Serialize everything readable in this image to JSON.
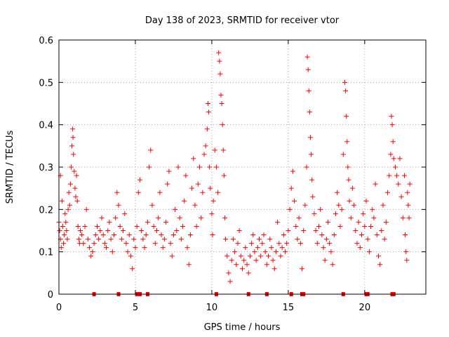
{
  "chart_data": {
    "type": "scatter",
    "title": "Day 138 of 2023, SRMTID for receiver vtor",
    "xlabel": "GPS time / hours",
    "ylabel": "SRMTID / TECUs",
    "xlim": [
      0,
      24
    ],
    "ylim": [
      0,
      0.6
    ],
    "xticks": [
      0,
      5,
      10,
      15,
      20
    ],
    "xtick_labels": [
      "0",
      "5",
      "10",
      "15",
      "20"
    ],
    "yticks": [
      0,
      0.1,
      0.2,
      0.3,
      0.4,
      0.5,
      0.6
    ],
    "ytick_labels": [
      "0",
      "0.1",
      "0.2",
      "0.3",
      "0.4",
      "0.5",
      "0.6"
    ],
    "grid": true,
    "marker": "plus",
    "series_color": "#ff0000",
    "series": [
      {
        "name": "SRMTID",
        "points": [
          [
            0.0,
            0.17
          ],
          [
            0.05,
            0.15
          ],
          [
            0.1,
            0.28
          ],
          [
            0.1,
            0.13
          ],
          [
            0.15,
            0.11
          ],
          [
            0.2,
            0.22
          ],
          [
            0.25,
            0.16
          ],
          [
            0.3,
            0.12
          ],
          [
            0.35,
            0.14
          ],
          [
            0.4,
            0.19
          ],
          [
            0.45,
            0.17
          ],
          [
            0.5,
            0.15
          ],
          [
            0.55,
            0.13
          ],
          [
            0.6,
            0.2
          ],
          [
            0.65,
            0.24
          ],
          [
            0.7,
            0.21
          ],
          [
            0.75,
            0.26
          ],
          [
            0.8,
            0.3
          ],
          [
            0.85,
            0.35
          ],
          [
            0.9,
            0.39
          ],
          [
            0.92,
            0.37
          ],
          [
            0.95,
            0.33
          ],
          [
            1.0,
            0.29
          ],
          [
            1.05,
            0.25
          ],
          [
            1.1,
            0.23
          ],
          [
            1.15,
            0.28
          ],
          [
            1.2,
            0.22
          ],
          [
            1.25,
            0.16
          ],
          [
            1.3,
            0.13
          ],
          [
            1.35,
            0.12
          ],
          [
            1.4,
            0.15
          ],
          [
            1.5,
            0.14
          ],
          [
            1.6,
            0.12
          ],
          [
            1.7,
            0.16
          ],
          [
            1.8,
            0.2
          ],
          [
            1.9,
            0.13
          ],
          [
            2.0,
            0.11
          ],
          [
            2.1,
            0.09
          ],
          [
            2.2,
            0.1
          ],
          [
            2.3,
            0.12
          ],
          [
            2.4,
            0.14
          ],
          [
            2.5,
            0.16
          ],
          [
            2.6,
            0.13
          ],
          [
            2.7,
            0.15
          ],
          [
            2.8,
            0.18
          ],
          [
            2.9,
            0.14
          ],
          [
            3.0,
            0.12
          ],
          [
            3.1,
            0.11
          ],
          [
            3.2,
            0.15
          ],
          [
            3.3,
            0.17
          ],
          [
            3.4,
            0.13
          ],
          [
            3.5,
            0.1
          ],
          [
            3.6,
            0.14
          ],
          [
            3.7,
            0.18
          ],
          [
            3.8,
            0.24
          ],
          [
            3.9,
            0.21
          ],
          [
            4.0,
            0.16
          ],
          [
            4.1,
            0.13
          ],
          [
            4.2,
            0.15
          ],
          [
            4.3,
            0.19
          ],
          [
            4.4,
            0.12
          ],
          [
            4.5,
            0.1
          ],
          [
            4.6,
            0.14
          ],
          [
            4.7,
            0.09
          ],
          [
            4.8,
            0.06
          ],
          [
            4.9,
            0.13
          ],
          [
            5.0,
            0.11
          ],
          [
            5.1,
            0.16
          ],
          [
            5.2,
            0.24
          ],
          [
            5.3,
            0.27
          ],
          [
            5.4,
            0.15
          ],
          [
            5.5,
            0.13
          ],
          [
            5.6,
            0.11
          ],
          [
            5.7,
            0.14
          ],
          [
            5.8,
            0.17
          ],
          [
            5.9,
            0.3
          ],
          [
            6.0,
            0.34
          ],
          [
            6.1,
            0.21
          ],
          [
            6.2,
            0.16
          ],
          [
            6.3,
            0.12
          ],
          [
            6.4,
            0.15
          ],
          [
            6.5,
            0.18
          ],
          [
            6.6,
            0.24
          ],
          [
            6.7,
            0.14
          ],
          [
            6.8,
            0.11
          ],
          [
            6.9,
            0.13
          ],
          [
            7.0,
            0.17
          ],
          [
            7.1,
            0.26
          ],
          [
            7.2,
            0.29
          ],
          [
            7.3,
            0.12
          ],
          [
            7.4,
            0.09
          ],
          [
            7.5,
            0.14
          ],
          [
            7.6,
            0.2
          ],
          [
            7.7,
            0.15
          ],
          [
            7.8,
            0.3
          ],
          [
            7.9,
            0.18
          ],
          [
            8.0,
            0.13
          ],
          [
            8.1,
            0.16
          ],
          [
            8.2,
            0.22
          ],
          [
            8.3,
            0.28
          ],
          [
            8.4,
            0.11
          ],
          [
            8.5,
            0.07
          ],
          [
            8.6,
            0.14
          ],
          [
            8.7,
            0.25
          ],
          [
            8.8,
            0.32
          ],
          [
            8.9,
            0.21
          ],
          [
            9.0,
            0.16
          ],
          [
            9.1,
            0.26
          ],
          [
            9.2,
            0.3
          ],
          [
            9.3,
            0.18
          ],
          [
            9.4,
            0.24
          ],
          [
            9.5,
            0.33
          ],
          [
            9.6,
            0.35
          ],
          [
            9.7,
            0.39
          ],
          [
            9.75,
            0.45
          ],
          [
            9.8,
            0.43
          ],
          [
            9.85,
            0.3
          ],
          [
            9.9,
            0.25
          ],
          [
            10.0,
            0.19
          ],
          [
            10.05,
            0.14
          ],
          [
            10.1,
            0.22
          ],
          [
            10.2,
            0.34
          ],
          [
            10.3,
            0.3
          ],
          [
            10.4,
            0.24
          ],
          [
            10.45,
            0.57
          ],
          [
            10.5,
            0.55
          ],
          [
            10.55,
            0.52
          ],
          [
            10.6,
            0.47
          ],
          [
            10.65,
            0.45
          ],
          [
            10.7,
            0.4
          ],
          [
            10.75,
            0.34
          ],
          [
            10.8,
            0.28
          ],
          [
            10.85,
            0.18
          ],
          [
            10.9,
            0.13
          ],
          [
            11.0,
            0.09
          ],
          [
            11.1,
            0.05
          ],
          [
            11.2,
            0.03
          ],
          [
            11.3,
            0.08
          ],
          [
            11.4,
            0.13
          ],
          [
            11.5,
            0.1
          ],
          [
            11.6,
            0.07
          ],
          [
            11.7,
            0.12
          ],
          [
            11.8,
            0.15
          ],
          [
            11.9,
            0.09
          ],
          [
            12.0,
            0.06
          ],
          [
            12.1,
            0.08
          ],
          [
            12.2,
            0.11
          ],
          [
            12.3,
            0.07
          ],
          [
            12.4,
            0.05
          ],
          [
            12.5,
            0.09
          ],
          [
            12.6,
            0.12
          ],
          [
            12.7,
            0.14
          ],
          [
            12.8,
            0.1
          ],
          [
            12.9,
            0.08
          ],
          [
            13.0,
            0.11
          ],
          [
            13.1,
            0.13
          ],
          [
            13.2,
            0.09
          ],
          [
            13.3,
            0.12
          ],
          [
            13.4,
            0.14
          ],
          [
            13.5,
            0.1
          ],
          [
            13.6,
            0.07
          ],
          [
            13.7,
            0.09
          ],
          [
            13.8,
            0.13
          ],
          [
            13.9,
            0.11
          ],
          [
            14.0,
            0.08
          ],
          [
            14.1,
            0.06
          ],
          [
            14.2,
            0.1
          ],
          [
            14.3,
            0.17
          ],
          [
            14.4,
            0.12
          ],
          [
            14.5,
            0.09
          ],
          [
            14.6,
            0.11
          ],
          [
            14.7,
            0.14
          ],
          [
            14.8,
            0.1
          ],
          [
            14.9,
            0.12
          ],
          [
            15.0,
            0.15
          ],
          [
            15.1,
            0.2
          ],
          [
            15.2,
            0.25
          ],
          [
            15.3,
            0.29
          ],
          [
            15.4,
            0.22
          ],
          [
            15.5,
            0.16
          ],
          [
            15.6,
            0.13
          ],
          [
            15.7,
            0.18
          ],
          [
            15.8,
            0.12
          ],
          [
            15.9,
            0.06
          ],
          [
            16.0,
            0.15
          ],
          [
            16.1,
            0.21
          ],
          [
            16.2,
            0.3
          ],
          [
            16.25,
            0.56
          ],
          [
            16.3,
            0.53
          ],
          [
            16.35,
            0.48
          ],
          [
            16.4,
            0.43
          ],
          [
            16.45,
            0.37
          ],
          [
            16.5,
            0.33
          ],
          [
            16.55,
            0.27
          ],
          [
            16.6,
            0.23
          ],
          [
            16.7,
            0.19
          ],
          [
            16.8,
            0.15
          ],
          [
            16.9,
            0.12
          ],
          [
            17.0,
            0.16
          ],
          [
            17.1,
            0.2
          ],
          [
            17.2,
            0.14
          ],
          [
            17.3,
            0.11
          ],
          [
            17.4,
            0.08
          ],
          [
            17.5,
            0.13
          ],
          [
            17.6,
            0.17
          ],
          [
            17.7,
            0.12
          ],
          [
            17.8,
            0.1
          ],
          [
            17.9,
            0.07
          ],
          [
            18.0,
            0.14
          ],
          [
            18.1,
            0.19
          ],
          [
            18.2,
            0.24
          ],
          [
            18.3,
            0.21
          ],
          [
            18.4,
            0.16
          ],
          [
            18.5,
            0.2
          ],
          [
            18.6,
            0.33
          ],
          [
            18.7,
            0.5
          ],
          [
            18.75,
            0.48
          ],
          [
            18.8,
            0.42
          ],
          [
            18.85,
            0.36
          ],
          [
            18.9,
            0.3
          ],
          [
            18.95,
            0.27
          ],
          [
            19.0,
            0.22
          ],
          [
            19.1,
            0.18
          ],
          [
            19.2,
            0.25
          ],
          [
            19.3,
            0.21
          ],
          [
            19.4,
            0.15
          ],
          [
            19.5,
            0.12
          ],
          [
            19.6,
            0.17
          ],
          [
            19.7,
            0.11
          ],
          [
            19.8,
            0.14
          ],
          [
            19.9,
            0.19
          ],
          [
            20.0,
            0.16
          ],
          [
            20.1,
            0.22
          ],
          [
            20.2,
            0.13
          ],
          [
            20.3,
            0.1
          ],
          [
            20.4,
            0.16
          ],
          [
            20.5,
            0.2
          ],
          [
            20.6,
            0.18
          ],
          [
            20.7,
            0.26
          ],
          [
            20.8,
            0.14
          ],
          [
            20.9,
            0.09
          ],
          [
            21.0,
            0.07
          ],
          [
            21.1,
            0.15
          ],
          [
            21.2,
            0.21
          ],
          [
            21.3,
            0.13
          ],
          [
            21.4,
            0.17
          ],
          [
            21.5,
            0.24
          ],
          [
            21.6,
            0.28
          ],
          [
            21.7,
            0.33
          ],
          [
            21.75,
            0.42
          ],
          [
            21.8,
            0.4
          ],
          [
            21.85,
            0.36
          ],
          [
            21.9,
            0.32
          ],
          [
            22.0,
            0.3
          ],
          [
            22.1,
            0.28
          ],
          [
            22.2,
            0.26
          ],
          [
            22.3,
            0.32
          ],
          [
            22.4,
            0.23
          ],
          [
            22.5,
            0.18
          ],
          [
            22.6,
            0.28
          ],
          [
            22.65,
            0.14
          ],
          [
            22.7,
            0.1
          ],
          [
            22.75,
            0.08
          ],
          [
            22.8,
            0.24
          ],
          [
            22.85,
            0.21
          ],
          [
            22.9,
            0.18
          ],
          [
            22.95,
            0.26
          ]
        ]
      }
    ],
    "baseline_markers_x": [
      2.3,
      3.9,
      5.1,
      5.3,
      5.8,
      10.3,
      12.4,
      13.6,
      15.2,
      15.9,
      16.0,
      18.6,
      20.1,
      20.2,
      21.8,
      21.9
    ]
  }
}
